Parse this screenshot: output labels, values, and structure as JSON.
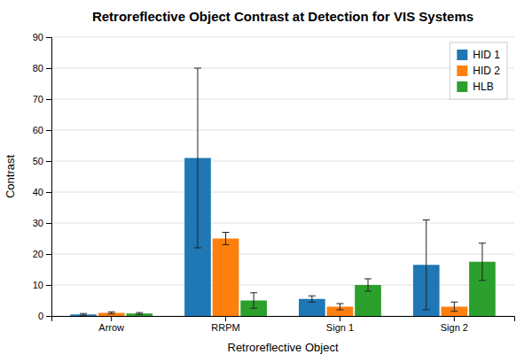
{
  "chart_data": {
    "type": "bar",
    "title": "Retroreflective Object Contrast at Detection for VIS Systems",
    "xlabel": "Retroreflective Object",
    "ylabel": "Contrast",
    "categories": [
      "Arrow",
      "RRPM",
      "Sign 1",
      "Sign 2"
    ],
    "series": [
      {
        "name": "HID 1",
        "values": [
          0.5,
          51,
          5.5,
          16.5
        ],
        "errors": [
          0.3,
          29,
          1.0,
          14.5
        ]
      },
      {
        "name": "HID 2",
        "values": [
          1.0,
          25,
          3.0,
          3.0
        ],
        "errors": [
          0.3,
          2.0,
          1.0,
          1.5
        ]
      },
      {
        "name": "HLB",
        "values": [
          0.8,
          5.0,
          10.0,
          17.5
        ],
        "errors": [
          0.3,
          2.5,
          2.0,
          6.0
        ]
      }
    ],
    "ylim": [
      0,
      90
    ],
    "yticks": [
      0,
      10,
      20,
      30,
      40,
      50,
      60,
      70,
      80,
      90
    ],
    "grid": true,
    "legend": "upper right"
  }
}
